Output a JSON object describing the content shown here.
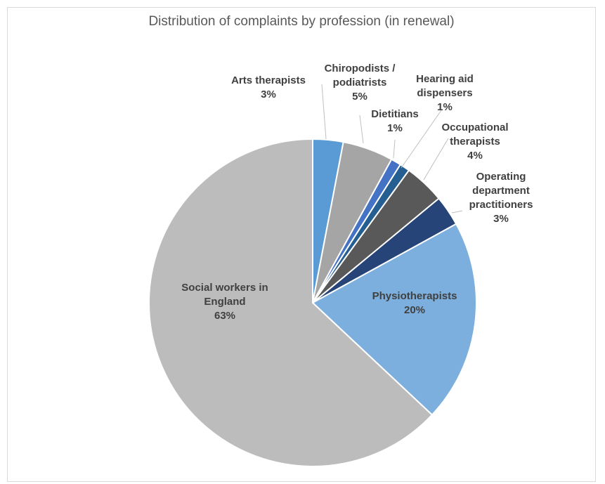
{
  "chart_data": {
    "type": "pie",
    "title": "Distribution of complaints by profession (in renewal)",
    "slices": [
      {
        "label": [
          "Arts therapists"
        ],
        "pct_label": "3%",
        "value": 3,
        "color": "#5b9bd5"
      },
      {
        "label": [
          "Chiropodists /",
          "podiatrists"
        ],
        "pct_label": "5%",
        "value": 5,
        "color": "#a5a5a5"
      },
      {
        "label": [
          "Dietitians"
        ],
        "pct_label": "1%",
        "value": 1,
        "color": "#4472c4"
      },
      {
        "label": [
          "Hearing aid",
          "dispensers"
        ],
        "pct_label": "1%",
        "value": 1,
        "color": "#255e91"
      },
      {
        "label": [
          "Occupational",
          "therapists"
        ],
        "pct_label": "4%",
        "value": 4,
        "color": "#595959"
      },
      {
        "label": [
          "Operating",
          "department",
          "practitioners"
        ],
        "pct_label": "3%",
        "value": 3,
        "color": "#264478"
      },
      {
        "label": [
          "Physiotherapists"
        ],
        "pct_label": "20%",
        "value": 20,
        "color": "#7cafdd"
      },
      {
        "label": [
          "Social workers in",
          "England"
        ],
        "pct_label": "63%",
        "value": 63,
        "color": "#bcbcbc"
      }
    ]
  }
}
